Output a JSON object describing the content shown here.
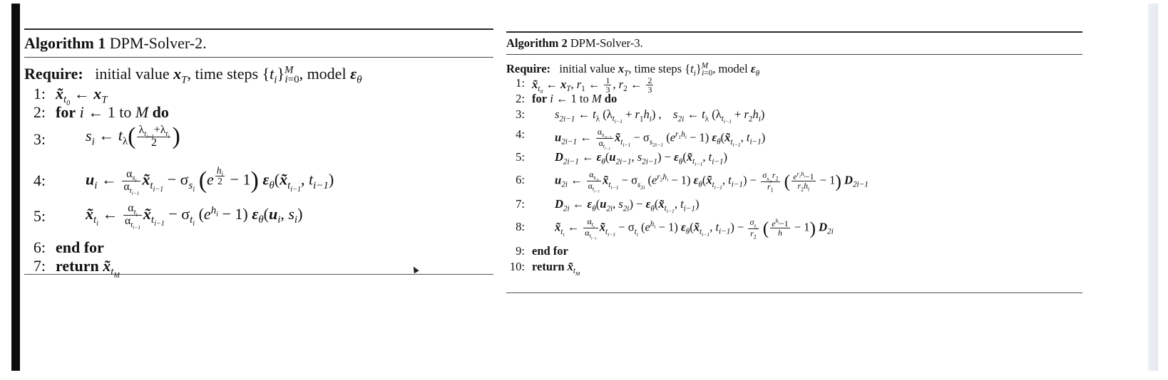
{
  "alg1": {
    "caption_label": "Algorithm 1",
    "caption_title": "DPM-Solver-2.",
    "require_kw": "Require:",
    "require_text": "initial value x_T, time steps {t_i}_{i=0}^M, model ε_θ",
    "lines": [
      {
        "num": "1:",
        "text": "x̃_{t_0} ← x_T"
      },
      {
        "num": "2:",
        "kw": "for",
        "text": "i ← 1 to M",
        "kw2": "do"
      },
      {
        "num": "3:",
        "text": "s_i ← t_λ((λ_{t_{i-1}} + λ_{t_i}) / 2)"
      },
      {
        "num": "4:",
        "text": "u_i ← (α_{s_i}/α_{t_{i-1}}) x̃_{t_{i-1}} − σ_{s_i}(e^{h_i/2} − 1) ε_θ(x̃_{t_{i-1}}, t_{i-1})"
      },
      {
        "num": "5:",
        "text": "x̃_{t_i} ← (α_{t_i}/α_{t_{i-1}}) x̃_{t_{i-1}} − σ_{t_i}(e^{h_i} − 1) ε_θ(u_i, s_i)"
      },
      {
        "num": "6:",
        "kw": "end for"
      },
      {
        "num": "7:",
        "kw": "return",
        "text": "x̃_{t_M}"
      }
    ]
  },
  "alg2": {
    "caption_label": "Algorithm 2",
    "caption_title": "DPM-Solver-3.",
    "require_kw": "Require:",
    "require_text": "initial value x_T, time steps {t_i}_{i=0}^M, model ε_θ",
    "lines": [
      {
        "num": "1:",
        "text": "x̃_{t_0} ← x_T, r_1 ← 1/3, r_2 ← 2/3"
      },
      {
        "num": "2:",
        "kw": "for",
        "text": "i ← 1 to M",
        "kw2": "do"
      },
      {
        "num": "3:",
        "text": "s_{2i-1} ← t_λ(λ_{t_{i-1}} + r_1 h_i), s_{2i} ← t_λ(λ_{t_{i-1}} + r_2 h_i)"
      },
      {
        "num": "4:",
        "text": "u_{2i-1} ← (α_{s_{2i-1}}/α_{t_{i-1}}) x̃_{t_{i-1}} − σ_{s_{2i-1}}(e^{r_1 h_i} − 1) ε_θ(x̃_{t_{i-1}}, t_{i-1})"
      },
      {
        "num": "5:",
        "text": "D_{2i-1} ← ε_θ(u_{2i-1}, s_{2i-1}) − ε_θ(x̃_{t_{i-1}}, t_{i-1})"
      },
      {
        "num": "6:",
        "text": "u_{2i} ← (α_{s_{2i}}/α_{t_{i-1}}) x̃_{t_{i-1}} − σ_{s_{2i}}(e^{r_2 h_i} − 1) ε_θ(x̃_{t_{i-1}}, t_{i-1}) − (σ_{s_{2i}} r_2 / r_1)((e^{r_2 h_i} − 1)/(r_2 h_i) − 1) D_{2i-1}"
      },
      {
        "num": "7:",
        "text": "D_{2i} ← ε_θ(u_{2i}, s_{2i}) − ε_θ(x̃_{t_{i-1}}, t_{i-1})"
      },
      {
        "num": "8:",
        "text": "x̃_{t_i} ← (α_{t_i}/α_{t_{i-1}}) x̃_{t_{i-1}} − σ_{t_i}(e^{h_i} − 1) ε_θ(x̃_{t_{i-1}}, t_{i-1}) − (σ_{t_i}/r_2)((e^{h_i} − 1)/h − 1) D_{2i}"
      },
      {
        "num": "9:",
        "kw": "end for"
      },
      {
        "num": "10:",
        "kw": "return",
        "text": "x̃_{t_M}"
      }
    ]
  }
}
